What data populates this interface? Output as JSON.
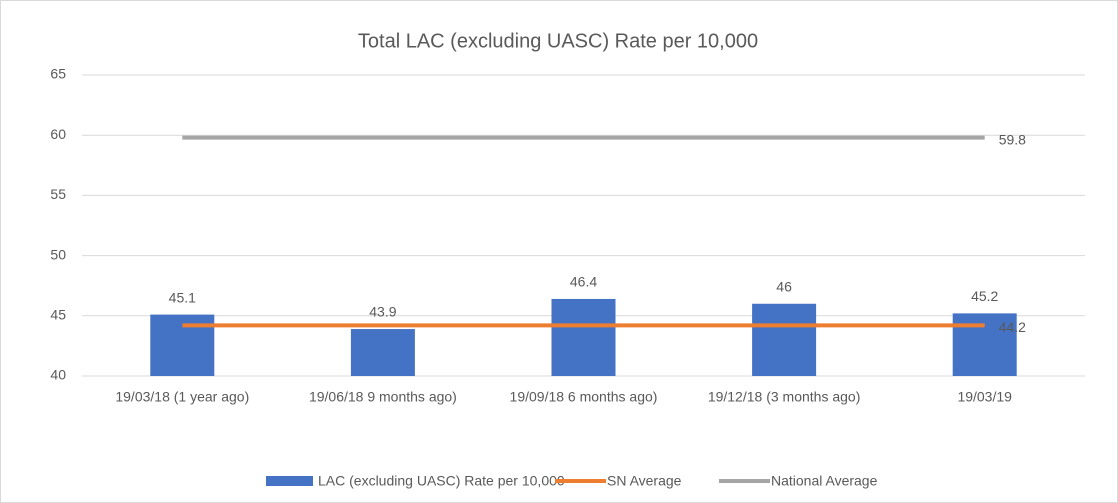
{
  "chart_data": {
    "type": "bar",
    "title": "Total LAC (excluding UASC) Rate per 10,000",
    "categories": [
      "19/03/18 (1 year ago)",
      "19/06/18 9 months ago)",
      "19/09/18 6 months ago)",
      "19/12/18 (3 months ago)",
      "19/03/19"
    ],
    "series": [
      {
        "name": "LAC (excluding UASC) Rate per 10,000",
        "type": "bar",
        "color": "#4472c4",
        "values": [
          45.1,
          43.9,
          46.4,
          46,
          45.2
        ]
      },
      {
        "name": "SN Average",
        "type": "line",
        "color": "#ed7d31",
        "values": [
          44.2,
          44.2,
          44.2,
          44.2,
          44.2
        ]
      },
      {
        "name": "National Average",
        "type": "line",
        "color": "#a5a5a5",
        "values": [
          59.8,
          59.8,
          59.8,
          59.8,
          59.8
        ]
      }
    ],
    "ylim": [
      40,
      65
    ],
    "yticks": [
      40,
      45,
      50,
      55,
      60,
      65
    ],
    "grid": true,
    "legend": "bottom"
  }
}
